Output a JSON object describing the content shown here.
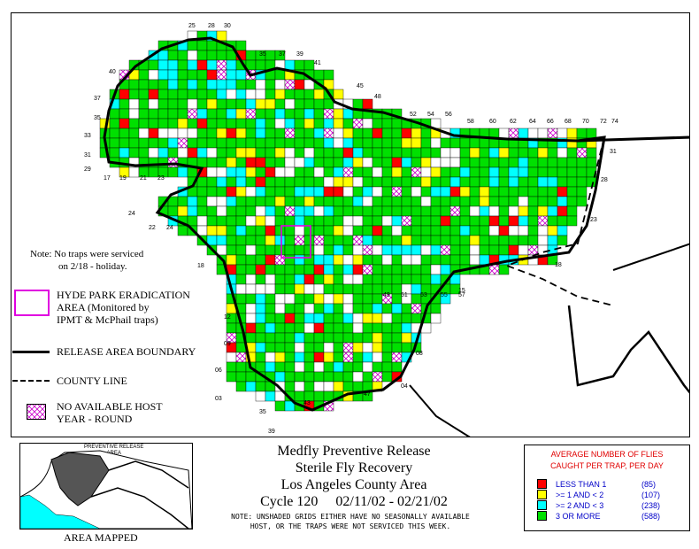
{
  "note": {
    "line1": "Note: No traps were serviced",
    "line2": "on 2/18 - holiday."
  },
  "legend_left": {
    "hyde_park": [
      "HYDE PARK ERADICATION",
      "AREA (Monitored by",
      "IPMT & McPhail traps)"
    ],
    "release_boundary": "RELEASE AREA BOUNDARY",
    "county_line": "COUNTY LINE",
    "no_host": [
      "NO AVAILABLE HOST",
      "YEAR - ROUND"
    ]
  },
  "inset": {
    "title_line1": "PREVENTIVE RELEASE",
    "title_line2": "AREA",
    "caption": "AREA MAPPED"
  },
  "title": {
    "line1": "Medfly Preventive Release",
    "line2": "Sterile Fly Recovery",
    "line3": "Los Angeles County Area",
    "line4": "Cycle 120     02/11/02 - 02/21/02"
  },
  "footnote": {
    "line1": "NOTE: UNSHADED GRIDS EITHER HAVE NO SEASONALLY AVAILABLE",
    "line2": "HOST, OR THE TRAPS WERE NOT SERVICED THIS WEEK."
  },
  "catch_legend": {
    "heading1": "AVERAGE NUMBER OF FLIES",
    "heading2": "CAUGHT PER TRAP, PER DAY",
    "rows": [
      {
        "label": "LESS THAN 1",
        "count": "(85)",
        "color": "#ff0000"
      },
      {
        "label": ">= 1 AND < 2",
        "count": "(107)",
        "color": "#ffff00"
      },
      {
        "label": ">= 2 AND < 3",
        "count": "(238)",
        "color": "#00ffff"
      },
      {
        "label": "3 OR MORE",
        "count": "(588)",
        "color": "#00e000"
      }
    ]
  },
  "grid_labels": {
    "top": [
      "25",
      "28",
      "30",
      "35",
      "37",
      "39",
      "41",
      "45",
      "48",
      "52",
      "54",
      "56",
      "58",
      "60",
      "62",
      "64",
      "66",
      "68",
      "70",
      "72",
      "74"
    ],
    "left": [
      "40",
      "37",
      "35",
      "33",
      "31",
      "29",
      "24",
      "18",
      "12",
      "09",
      "06",
      "03"
    ],
    "bottom": [
      "17",
      "19",
      "21",
      "23",
      "22",
      "24",
      "35",
      "39",
      "43",
      "47",
      "49",
      "51",
      "53",
      "55",
      "57"
    ],
    "right": [
      "31",
      "28",
      "23",
      "18",
      "15",
      "08",
      "04"
    ]
  },
  "colors": {
    "red": "#ff0000",
    "yellow": "#ffff00",
    "cyan": "#00ffff",
    "green": "#00e000",
    "hatch": "#cc00cc",
    "hyde": "#e000e0"
  }
}
